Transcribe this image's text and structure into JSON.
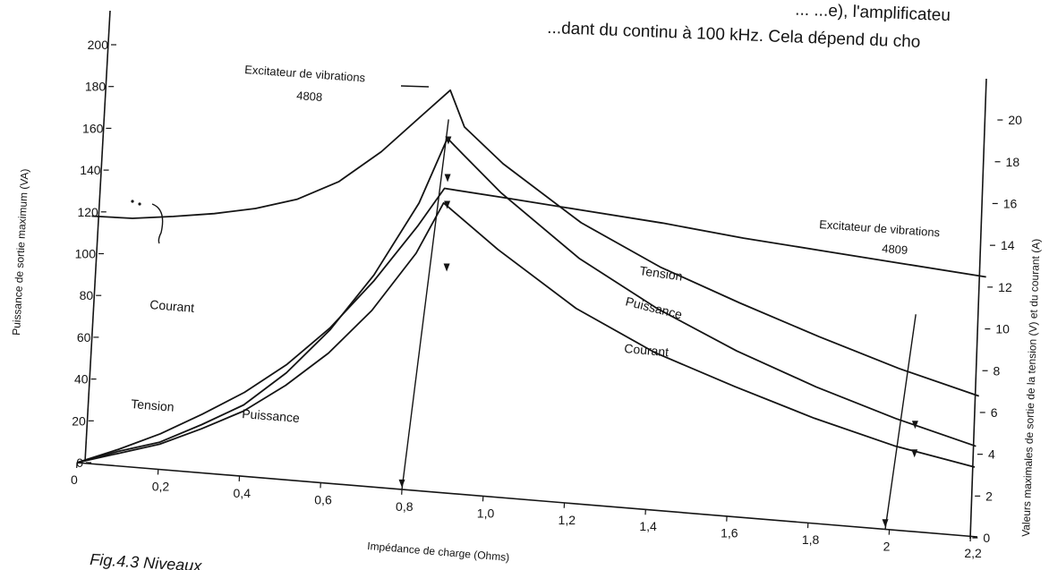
{
  "page": {
    "top_text_line1": "... ...e), l'amplificateu",
    "top_text_line2": "...dant du continu à 100 kHz. Cela dépend du cho",
    "caption": "Fig.4.3     Niveaux ..."
  },
  "chart_data": {
    "type": "line",
    "xlabel": "Impédance de charge (Ohms)",
    "ylabel_left": "Puissance de sortie maximum (VA)",
    "ylabel_right": "Valeurs maximales de sortie de la tension (V) et du courant (A)",
    "xlim": [
      0,
      2.2
    ],
    "ylim_left": [
      0,
      200
    ],
    "ylim_right": [
      0,
      20
    ],
    "x_ticks": [
      "0",
      "0,2",
      "0,4",
      "0,6",
      "0,8",
      "1,0",
      "1,2",
      "1,4",
      "1,6",
      "1,8",
      "2",
      "2,2"
    ],
    "y_left_ticks": [
      "0",
      "20",
      "40",
      "60",
      "80",
      "100",
      "120",
      "140",
      "160",
      "180",
      "200"
    ],
    "y_right_ticks": [
      "0",
      "2",
      "4",
      "6",
      "8",
      "10",
      "12",
      "14",
      "16",
      "18",
      "20"
    ],
    "grid": false,
    "series": [
      {
        "name": "Courant",
        "axis": "right",
        "points": [
          [
            0,
            11.8
          ],
          [
            0.1,
            11.85
          ],
          [
            0.2,
            12.1
          ],
          [
            0.3,
            12.4
          ],
          [
            0.4,
            12.8
          ],
          [
            0.5,
            13.4
          ],
          [
            0.6,
            14.4
          ],
          [
            0.7,
            16.0
          ],
          [
            0.8,
            18.0
          ],
          [
            0.86,
            19.2
          ],
          [
            0.9,
            17.5
          ],
          [
            1.0,
            15.9
          ],
          [
            1.2,
            13.4
          ],
          [
            1.4,
            11.6
          ],
          [
            1.6,
            10.2
          ],
          [
            1.8,
            8.9
          ],
          [
            2.0,
            7.7
          ],
          [
            2.2,
            6.7
          ]
        ]
      },
      {
        "name": "Tension",
        "axis": "right",
        "points": [
          [
            0,
            0
          ],
          [
            0.1,
            0.8
          ],
          [
            0.2,
            1.7
          ],
          [
            0.3,
            2.8
          ],
          [
            0.4,
            4.0
          ],
          [
            0.5,
            5.5
          ],
          [
            0.6,
            7.4
          ],
          [
            0.7,
            9.8
          ],
          [
            0.8,
            12.6
          ],
          [
            0.86,
            14.5
          ],
          [
            1.0,
            14.3
          ],
          [
            1.2,
            14.0
          ],
          [
            1.4,
            13.7
          ],
          [
            1.6,
            13.3
          ],
          [
            1.8,
            13.0
          ],
          [
            2.0,
            12.7
          ],
          [
            2.2,
            12.4
          ]
        ]
      },
      {
        "name": "Puissance",
        "axis": "left",
        "points": [
          [
            0,
            0
          ],
          [
            0.1,
            6
          ],
          [
            0.2,
            12
          ],
          [
            0.3,
            21
          ],
          [
            0.4,
            31
          ],
          [
            0.5,
            45
          ],
          [
            0.6,
            62
          ],
          [
            0.7,
            84
          ],
          [
            0.8,
            113
          ],
          [
            0.86,
            138
          ],
          [
            1.0,
            118
          ],
          [
            1.2,
            93
          ],
          [
            1.4,
            75
          ],
          [
            1.6,
            62
          ],
          [
            1.8,
            50
          ],
          [
            2.0,
            40
          ],
          [
            2.2,
            33
          ]
        ]
      },
      {
        "name": "",
        "axis": "left",
        "points": [
          [
            0,
            0
          ],
          [
            0.1,
            7
          ],
          [
            0.2,
            13
          ],
          [
            0.3,
            23
          ],
          [
            0.4,
            34
          ],
          [
            0.5,
            51
          ],
          [
            0.6,
            73
          ],
          [
            0.7,
            101
          ],
          [
            0.8,
            137
          ],
          [
            0.86,
            169
          ],
          [
            0.9,
            162
          ],
          [
            1.0,
            145
          ],
          [
            1.2,
            117
          ],
          [
            1.4,
            96
          ],
          [
            1.6,
            79
          ],
          [
            1.8,
            65
          ],
          [
            2.0,
            53
          ],
          [
            2.2,
            43
          ]
        ]
      }
    ],
    "labels": {
      "courant_left": "Courant",
      "tension_left": "Tension",
      "puissance_left": "Puissance",
      "tension_right": "Tension",
      "puissance_right": "Puissance",
      "courant_right": "Courant"
    },
    "annotations": [
      {
        "title": "Excitateur de vibrations",
        "model": "4808",
        "x_value": 0.86
      },
      {
        "title": "Excitateur de vibrations",
        "model": "4809",
        "x_value": 2.0
      }
    ]
  }
}
